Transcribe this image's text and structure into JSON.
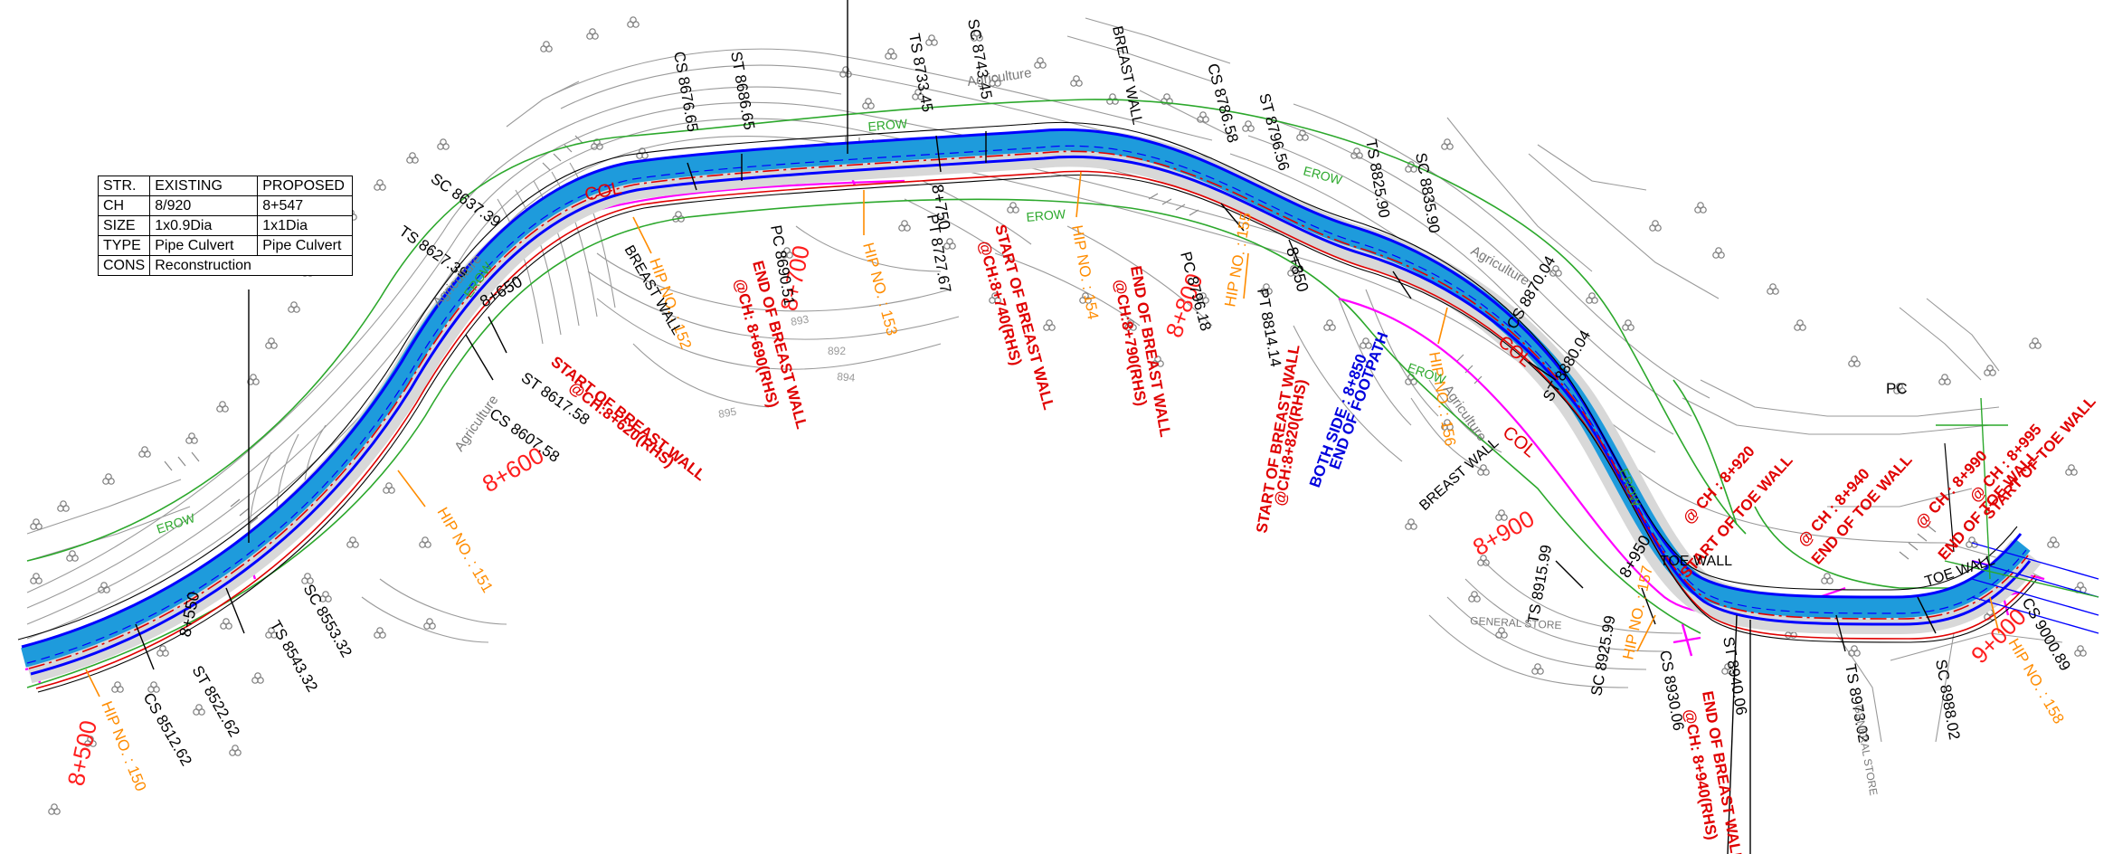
{
  "structure_table": {
    "headers": [
      "STR.",
      "EXISTING",
      "PROPOSED"
    ],
    "rows": [
      {
        "label": "CH",
        "existing": "8/920",
        "proposed": "8+547"
      },
      {
        "label": "SIZE",
        "existing": "1x0.9Dia",
        "proposed": "1x1Dia"
      },
      {
        "label": "TYPE",
        "existing": "Pipe Culvert",
        "proposed": "Pipe Culvert"
      },
      {
        "label": "CONS",
        "existing": "Reconstruction",
        "proposed": ""
      }
    ]
  },
  "chainages": [
    "8+500",
    "8+600",
    "8+700",
    "8+800",
    "8+900",
    "9+000"
  ],
  "ticks": [
    "8+550",
    "8+650",
    "8+750",
    "8+850",
    "8+950"
  ],
  "hip_labels": [
    "HIP NO. : 150",
    "HIP NO. : 151",
    "HIP NO. : 152",
    "HIP NO. : 153",
    "HIP NO. : 154",
    "HIP NO. : 155",
    "HIP NO. : 156",
    "HIP NO. : 157",
    "HIP NO. : 158"
  ],
  "curve_points": {
    "cs_8512": "CS  8512.62",
    "st_8522": "ST  8522.62",
    "ts_8543": "TS  8543.32",
    "sc_8553": "SC  8553.32",
    "cs_8607": "CS  8607.58",
    "st_8617": "ST  8617.58",
    "ts_8627": "TS  8627.39",
    "sc_8637": "SC  8637.39",
    "cs_8676": "CS  8676.65",
    "st_8686": "ST  8686.65",
    "pc_8690": "PC  8690.51",
    "pt_8727": "PT  8727.67",
    "ts_8733": "TS  8733.45",
    "sc_8743": "SC  8743.45",
    "pc_8796": "PC  8796.18",
    "cs_8786": "CS  8786.58",
    "st_8796": "ST  8796.56",
    "pt_8814": "PT  8814.14",
    "ts_8825": "TS  8825.90",
    "sc_8835": "SC  8835.90",
    "cs_8870": "CS  8870.04",
    "st_8880": "ST  8880.04",
    "ts_8915": "TS  8915.99",
    "sc_8925": "SC  8925.99",
    "cs_8930": "CS  8930.06",
    "st_8940": "ST  8940.06",
    "ts_8973": "TS  8973.02",
    "sc_8988": "SC  8988.02",
    "cs_9000": "CS  9000.89",
    "pc_top": "PC"
  },
  "breast_wall_notes": {
    "bw1_l1": "START OF BREAST WALL",
    "bw1_l2": "@CH:8+620(RHS)",
    "bw2_l1": "END OF BREAST WALL",
    "bw2_l2": "@CH: 8+690(RHS)",
    "bw3_l1": "START OF BREAST WALL",
    "bw3_l2": "@CH:8+740(RHS)",
    "bw4_l1": "END OF BREAST WALL",
    "bw4_l2": "@CH:8+790(RHS)",
    "bw5_l1": "START OF BREAST WALL",
    "bw5_l2": "@CH:8+820(RHS)",
    "bw6_l1": "END OF BREAST WALL",
    "bw6_l2": "@CH: 8+940(RHS)"
  },
  "toe_wall_notes": {
    "tw1_l1": "START OF TOE WALL",
    "tw1_l2": "@ CH : 8+920",
    "tw2_l1": "END OF TOE WALL",
    "tw2_l2": "@ CH : 8+940",
    "tw3_l1": "END OF TOE WALL",
    "tw3_l2": "@ CH : 8+990",
    "tw4_l1": "START OF TOE WALL",
    "tw4_l2": "@ CH : 8+995"
  },
  "footpath_note": {
    "l1": "END OF FOOTPATH",
    "l2": "BOTH SIDE : 8+850"
  },
  "labels": {
    "breast_wall": "BREAST WALL",
    "toe_wall": "TOE WALL",
    "agriculture": "Agriculture",
    "erow": "EROW",
    "col": "COL",
    "general_store": "GENERAL STORE",
    "contour_892": "892",
    "contour_893": "893",
    "contour_894": "894",
    "contour_895": "895"
  },
  "colors": {
    "road_edge": "#0000ff",
    "road_fill": "#1e9bdc",
    "centerline": "#e00000",
    "row_line": "#2ca82c",
    "magenta": "#ff00ff",
    "hip": "#ff8c00",
    "chainage": "#ff1e1e",
    "contour": "#9a9a9a",
    "paved": "#d8d8d8"
  }
}
